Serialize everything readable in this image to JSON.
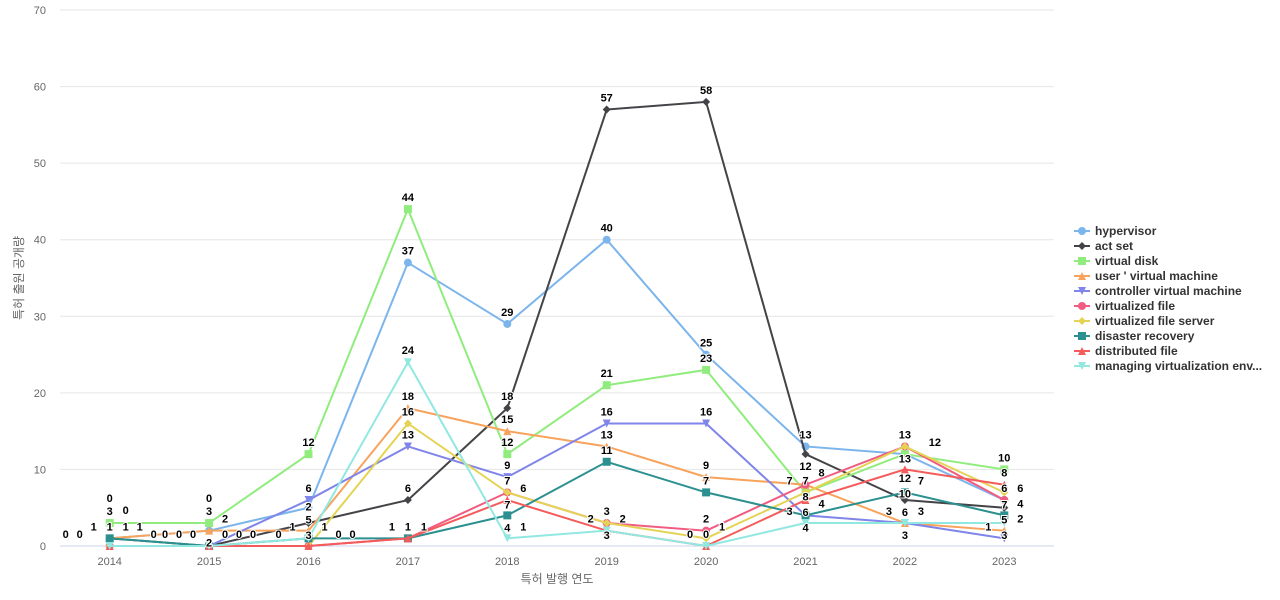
{
  "chart_data": {
    "type": "line",
    "title": "",
    "xlabel": "특허 발행 연도",
    "ylabel": "특허 출원 공개량",
    "categories": [
      "2014",
      "2015",
      "2016",
      "2017",
      "2018",
      "2019",
      "2020",
      "2021",
      "2022",
      "2023"
    ],
    "ylim": [
      0,
      70
    ],
    "yticks": [
      0,
      10,
      20,
      30,
      40,
      50,
      60,
      70
    ],
    "grid": true,
    "legend": "right",
    "series": [
      {
        "name": "hypervisor",
        "color": "#7cb5ec",
        "marker": "circle",
        "values": [
          1,
          2,
          5,
          37,
          29,
          40,
          25,
          13,
          12,
          6
        ]
      },
      {
        "name": "act set",
        "color": "#434348",
        "marker": "diamond",
        "values": [
          1,
          0,
          3,
          6,
          18,
          57,
          58,
          12,
          6,
          5
        ]
      },
      {
        "name": "virtual disk",
        "color": "#90ed7d",
        "marker": "square",
        "values": [
          3,
          3,
          12,
          44,
          12,
          21,
          23,
          7,
          12,
          10
        ]
      },
      {
        "name": "user ' virtual machine",
        "color": "#f7a35c",
        "marker": "triangle",
        "values": [
          1,
          2,
          2,
          18,
          15,
          13,
          9,
          8,
          3,
          2
        ]
      },
      {
        "name": "controller virtual machine",
        "color": "#8085e9",
        "marker": "triangle-down",
        "values": [
          0,
          0,
          6,
          13,
          9,
          16,
          16,
          4,
          3,
          1
        ]
      },
      {
        "name": "virtualized file",
        "color": "#f15c80",
        "marker": "circle",
        "values": [
          0,
          0,
          0,
          1,
          7,
          3,
          2,
          8,
          13,
          6
        ]
      },
      {
        "name": "virtualized file server",
        "color": "#e4d354",
        "marker": "diamond",
        "values": [
          0,
          0,
          0,
          16,
          7,
          3,
          1,
          7,
          13,
          7
        ]
      },
      {
        "name": "disaster recovery",
        "color": "#2b908f",
        "marker": "square",
        "values": [
          1,
          0,
          1,
          1,
          4,
          11,
          7,
          4,
          7,
          4
        ]
      },
      {
        "name": "distributed file",
        "color": "#f45b5b",
        "marker": "triangle",
        "values": [
          0,
          0,
          0,
          1,
          6,
          2,
          0,
          6,
          10,
          8
        ]
      },
      {
        "name": "managing virtualization env...",
        "color": "#91e8e1",
        "marker": "triangle-down",
        "values": [
          0,
          0,
          1,
          24,
          1,
          2,
          0,
          3,
          3,
          3
        ]
      }
    ]
  }
}
